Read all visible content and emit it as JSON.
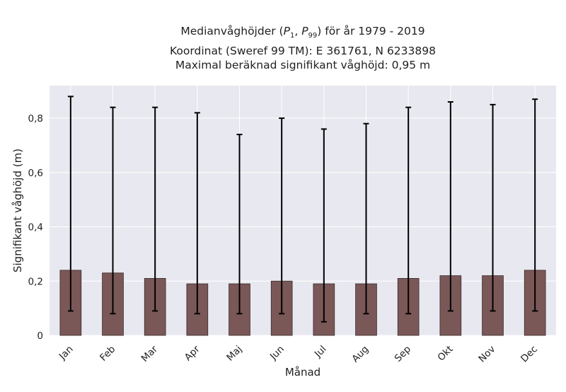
{
  "chart_data": {
    "type": "bar",
    "title_lines": [
      "Medianvåghöjder (P1, P99) för år 1979 - 2019",
      "Koordinat (Sweref 99 TM): E 361761, N 6233898",
      "Maximal beräknad signifikant våghöjd: 0,95 m"
    ],
    "title_math": {
      "prefix": "Medianvåghöjder (",
      "p1_base": "P",
      "p1_sub": "1",
      "separator": ", ",
      "p99_base": "P",
      "p99_sub": "99",
      "suffix": ") för år 1979 - 2019"
    },
    "xlabel": "Månad",
    "ylabel": "Signifikant våghöjd (m)",
    "categories": [
      "Jan",
      "Feb",
      "Mar",
      "Apr",
      "Maj",
      "Jun",
      "Jul",
      "Aug",
      "Sep",
      "Okt",
      "Nov",
      "Dec"
    ],
    "values": [
      0.24,
      0.23,
      0.21,
      0.19,
      0.19,
      0.2,
      0.19,
      0.19,
      0.21,
      0.22,
      0.22,
      0.24
    ],
    "error_low": [
      0.09,
      0.08,
      0.09,
      0.08,
      0.08,
      0.08,
      0.05,
      0.08,
      0.08,
      0.09,
      0.09,
      0.09
    ],
    "error_high": [
      0.88,
      0.84,
      0.84,
      0.82,
      0.74,
      0.8,
      0.76,
      0.78,
      0.84,
      0.86,
      0.85,
      0.87
    ],
    "ylim": [
      0,
      0.92
    ],
    "yticks": [
      0,
      0.2,
      0.4,
      0.6,
      0.8
    ],
    "ytick_labels": [
      "0",
      "0,2",
      "0,4",
      "0,6",
      "0,8"
    ],
    "grid": true,
    "colors": {
      "bar": "#7a5858",
      "bar_edge": "#3a2a2a",
      "errorbar": "#000000",
      "plot_background": "#e8e8f0",
      "grid": "#ffffff"
    }
  }
}
